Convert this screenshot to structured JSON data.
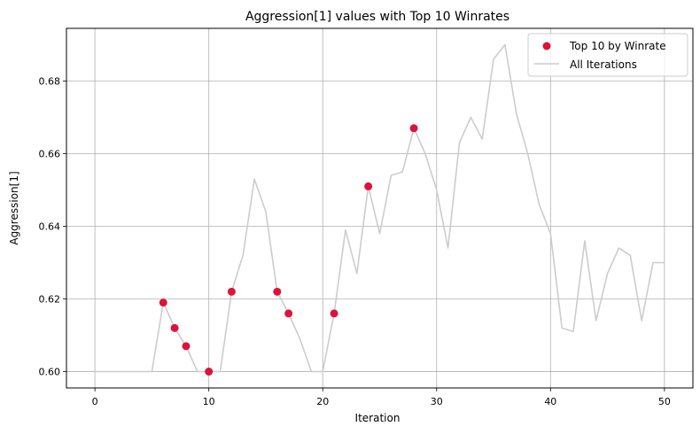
{
  "chart_data": {
    "type": "line",
    "title": "Aggression[1] values with Top 10 Winrates",
    "xlabel": "Iteration",
    "ylabel": "Aggression[1]",
    "xlim": [
      -2.5,
      52.5
    ],
    "ylim": [
      0.5955,
      0.6945
    ],
    "xticks": [
      0,
      10,
      20,
      30,
      40,
      50
    ],
    "yticks": [
      0.6,
      0.62,
      0.64,
      0.66,
      0.68
    ],
    "xtick_labels": [
      "0",
      "10",
      "20",
      "30",
      "40",
      "50"
    ],
    "ytick_labels": [
      "0.60",
      "0.62",
      "0.64",
      "0.66",
      "0.68"
    ],
    "grid": true,
    "legend_position": "top-right",
    "series": [
      {
        "name": "All Iterations",
        "kind": "line",
        "color": "#cccccc",
        "x": [
          0,
          1,
          2,
          3,
          4,
          5,
          6,
          7,
          8,
          9,
          10,
          11,
          12,
          13,
          14,
          15,
          16,
          17,
          18,
          19,
          20,
          21,
          22,
          23,
          24,
          25,
          26,
          27,
          28,
          29,
          30,
          31,
          32,
          33,
          34,
          35,
          36,
          37,
          38,
          39,
          40,
          41,
          42,
          43,
          44,
          45,
          46,
          47,
          48,
          49,
          50
        ],
        "y": [
          0.6,
          0.6,
          0.6,
          0.6,
          0.6,
          0.6,
          0.619,
          0.612,
          0.607,
          0.6,
          0.6,
          0.6,
          0.622,
          0.632,
          0.653,
          0.644,
          0.622,
          0.616,
          0.609,
          0.6,
          0.6,
          0.616,
          0.639,
          0.627,
          0.651,
          0.638,
          0.654,
          0.655,
          0.667,
          0.66,
          0.65,
          0.634,
          0.663,
          0.67,
          0.664,
          0.686,
          0.69,
          0.671,
          0.66,
          0.646,
          0.638,
          0.612,
          0.611,
          0.636,
          0.614,
          0.627,
          0.634,
          0.632,
          0.614,
          0.63,
          0.63
        ]
      },
      {
        "name": "Top 10 by Winrate",
        "kind": "scatter",
        "color": "#dc143c",
        "x": [
          6,
          7,
          8,
          10,
          12,
          16,
          17,
          21,
          24,
          28
        ],
        "y": [
          0.619,
          0.612,
          0.607,
          0.6,
          0.622,
          0.622,
          0.616,
          0.616,
          0.651,
          0.667
        ]
      }
    ]
  }
}
